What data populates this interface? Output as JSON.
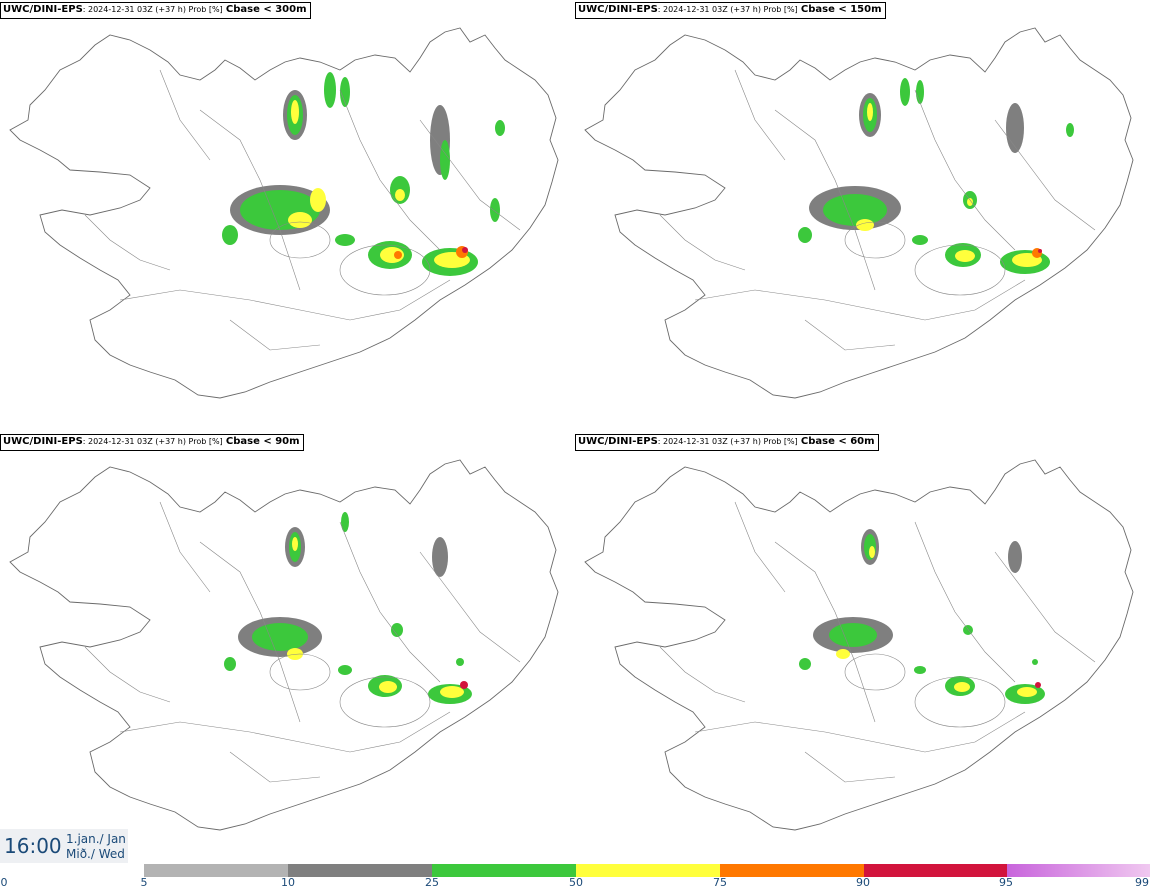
{
  "panels": [
    {
      "model": "UWC/DINI-EPS",
      "meta": ": 2024-12-31 03Z (+37 h) Prob [%]",
      "threshold": "Cbase < 300m"
    },
    {
      "model": "UWC/DINI-EPS",
      "meta": ": 2024-12-31 03Z (+37 h) Prob [%]",
      "threshold": "Cbase < 150m"
    },
    {
      "model": "UWC/DINI-EPS",
      "meta": ": 2024-12-31 03Z (+37 h) Prob [%]",
      "threshold": "Cbase < 90m"
    },
    {
      "model": "UWC/DINI-EPS",
      "meta": ": 2024-12-31 03Z (+37 h) Prob [%]",
      "threshold": "Cbase < 60m"
    }
  ],
  "valid_time": {
    "time": "16:00",
    "date_line1": "1.jan./ Jan",
    "date_line2": "Mið./ Wed"
  },
  "legend": {
    "labels": [
      "0",
      "5",
      "10",
      "25",
      "50",
      "75",
      "90",
      "95",
      "99"
    ],
    "colors": [
      "#b3b3b3",
      "#7f7f7f",
      "#3cc83c",
      "#ffff3c",
      "#ff7800",
      "#d2143c",
      "#c864dc"
    ]
  }
}
